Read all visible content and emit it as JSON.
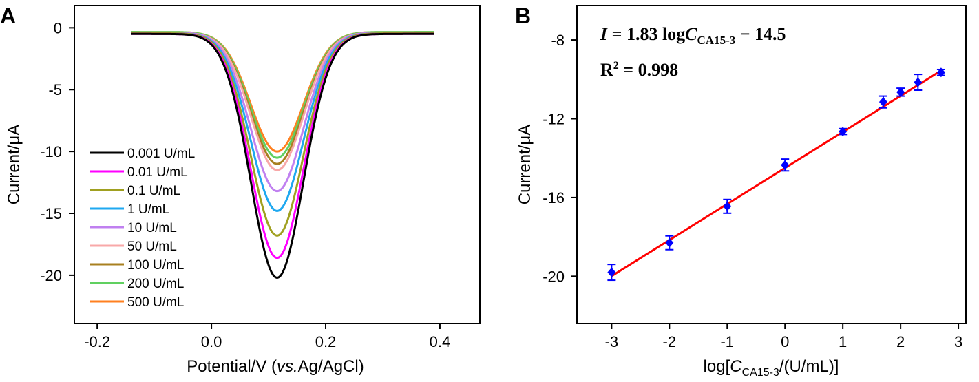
{
  "chart_data": [
    {
      "panel_label": "A",
      "type": "line",
      "xlabel_main": "Potential/V (",
      "xlabel_italic": "vs.",
      "xlabel_tail": "Ag/AgCl)",
      "ylabel": "Current/μA",
      "xlim": [
        -0.24,
        0.47
      ],
      "ylim": [
        -23.9,
        1.8
      ],
      "xticks": [
        -0.2,
        0.0,
        0.2,
        0.4
      ],
      "xtick_labels": [
        "-0.2",
        "0.0",
        "0.2",
        "0.4"
      ],
      "yticks": [
        0,
        -5,
        -10,
        -15,
        -20
      ],
      "ytick_labels": [
        "0",
        "-5",
        "-10",
        "-15",
        "-20"
      ],
      "legend_position": "left",
      "peak_potential": 0.115,
      "x_range": [
        -0.14,
        0.39
      ],
      "series": [
        {
          "name": "0.001 U/mL",
          "color": "#000000",
          "baseline": -0.5,
          "peak": -20.2
        },
        {
          "name": "0.01 U/mL",
          "color": "#ff00ff",
          "baseline": -0.5,
          "peak": -18.6
        },
        {
          "name": "0.1 U/mL",
          "color": "#a0a020",
          "baseline": -0.45,
          "peak": -16.8
        },
        {
          "name": "1 U/mL",
          "color": "#1fa8f0",
          "baseline": -0.45,
          "peak": -14.8
        },
        {
          "name": "10 U/mL",
          "color": "#c080f0",
          "baseline": -0.4,
          "peak": -13.2
        },
        {
          "name": "50 U/mL",
          "color": "#f8a8a8",
          "baseline": -0.4,
          "peak": -11.5
        },
        {
          "name": "100 U/mL",
          "color": "#a88020",
          "baseline": -0.4,
          "peak": -11.0
        },
        {
          "name": "200 U/mL",
          "color": "#60d060",
          "baseline": -0.35,
          "peak": -10.5
        },
        {
          "name": "500 U/mL",
          "color": "#ff8020",
          "baseline": -0.35,
          "peak": -10.0
        }
      ]
    },
    {
      "panel_label": "B",
      "type": "scatter",
      "xlabel_pre": "log[",
      "xlabel_c": "C",
      "xlabel_sub": "CA15-3",
      "xlabel_post": "/(U/mL)]",
      "ylabel": "Current/μA",
      "xlim": [
        -3.6,
        3.13
      ],
      "ylim": [
        -22.4,
        -6.25
      ],
      "xticks": [
        -3,
        -2,
        -1,
        0,
        1,
        2,
        3
      ],
      "xtick_labels": [
        "-3",
        "-2",
        "-1",
        "0",
        "1",
        "2",
        "3"
      ],
      "yticks": [
        -8,
        -12,
        -16,
        -20
      ],
      "ytick_labels": [
        "-8",
        "-12",
        "-16",
        "-20"
      ],
      "equation_i": "I",
      "equation_mid": " = 1.83 log",
      "equation_c": "C",
      "equation_sub": "CA15-3",
      "equation_tail": " − 14.5",
      "r2_label": "R",
      "r2_sup": "2",
      "r2_value": " = 0.998",
      "fit": {
        "slope": 1.83,
        "intercept": -14.5,
        "color": "#ff0000",
        "x_range": [
          -3,
          2.7
        ]
      },
      "point_color": "#0000ff",
      "x": [
        -3,
        -2,
        -1,
        0,
        1,
        1.7,
        2,
        2.3,
        2.7
      ],
      "y": [
        -19.8,
        -18.3,
        -16.45,
        -14.35,
        -12.65,
        -11.15,
        -10.65,
        -10.15,
        -9.65
      ],
      "error": [
        0.4,
        0.35,
        0.35,
        0.3,
        0.15,
        0.3,
        0.2,
        0.4,
        0.15
      ]
    }
  ]
}
